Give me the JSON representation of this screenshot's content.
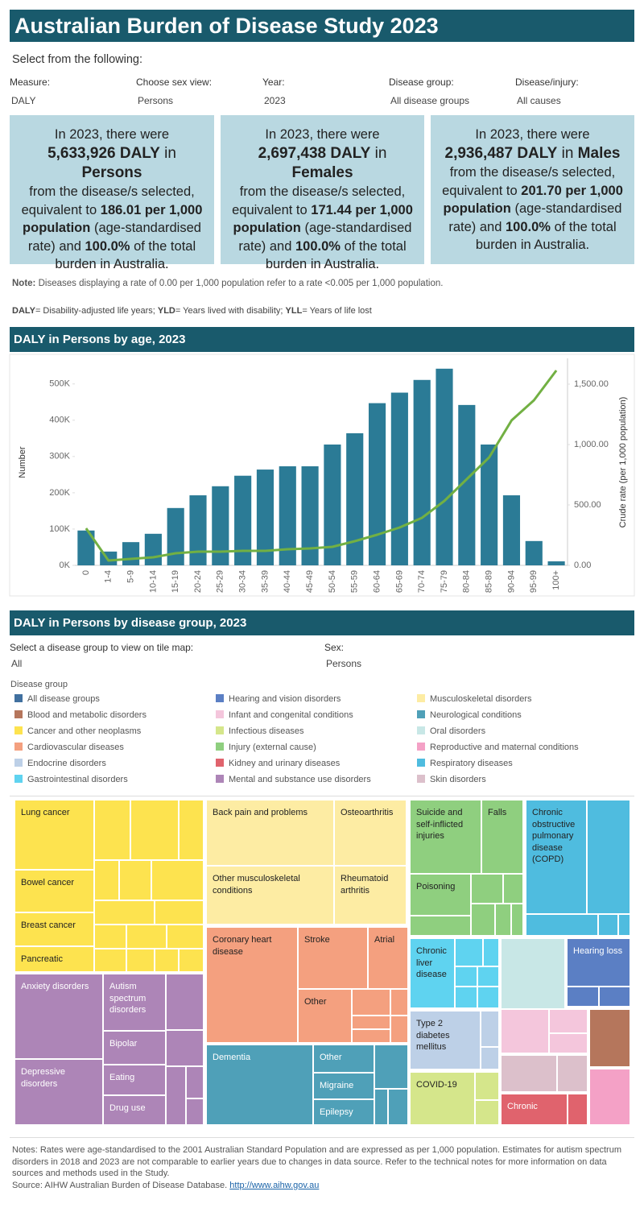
{
  "header": {
    "title": "Australian Burden of Disease Study 2023"
  },
  "prompt": "Select from the following:",
  "filters": [
    {
      "label": "Measure:",
      "value": "DALY"
    },
    {
      "label": "Choose sex view:",
      "value": "Persons"
    },
    {
      "label": "Year:",
      "value": "2023"
    },
    {
      "label": "Disease group:",
      "value": "All disease groups"
    },
    {
      "label": "Disease/injury:",
      "value": "All causes"
    }
  ],
  "cards": [
    {
      "intro": "In 2023, there were",
      "count": "5,633,926 DALY",
      "connector": "in",
      "sex": "Persons",
      "text1": "from the disease/s selected, equivalent to",
      "rate": "186.01 per 1,000 population",
      "text2": "(age-standardised rate) and",
      "share": "100.0%",
      "text3": "of the total burden in Australia."
    },
    {
      "intro": "In 2023, there were",
      "count": "2,697,438 DALY",
      "connector": "in",
      "sex": "Females",
      "text1": "from the disease/s selected, equivalent to",
      "rate": "171.44 per 1,000 population",
      "text2": "(age-standardised rate) and",
      "share": "100.0%",
      "text3": "of the total burden in Australia."
    },
    {
      "intro": "In 2023, there were",
      "count": "2,936,487 DALY",
      "connector": "in",
      "sex": "Males",
      "text1": "from the disease/s selected, equivalent to",
      "rate": "201.70 per 1,000 population",
      "text2": "(age-standardised rate) and",
      "share": "100.0%",
      "text3": "of the total burden in Australia."
    }
  ],
  "note": {
    "label": "Note:",
    "text": "Diseases displaying a rate of 0.00 per 1,000 population refer to a rate <0.005 per 1,000 population."
  },
  "definitions": [
    {
      "term": "DALY",
      "text": "= Disability-adjusted life years;"
    },
    {
      "term": "YLD",
      "text": "= Years lived with disability;"
    },
    {
      "term": "YLL",
      "text": "= Years of life lost"
    }
  ],
  "age_section": {
    "title": "DALY in Persons by age, 2023"
  },
  "chart_data": {
    "type": "bar",
    "categories": [
      "0",
      "1-4",
      "5-9",
      "10-14",
      "15-19",
      "20-24",
      "25-29",
      "30-34",
      "35-39",
      "40-44",
      "45-49",
      "50-54",
      "55-59",
      "60-64",
      "65-69",
      "70-74",
      "75-79",
      "80-84",
      "85-89",
      "90-94",
      "95-99",
      "100+"
    ],
    "series": [
      {
        "type": "bar",
        "color": "#2b7b96",
        "values": [
          96000,
          38000,
          64000,
          87000,
          158000,
          193000,
          218000,
          247000,
          264000,
          273000,
          273000,
          333000,
          364000,
          447000,
          476000,
          511000,
          542000,
          442000,
          333000,
          193000,
          67000,
          11000
        ]
      },
      {
        "type": "line",
        "axis": "y2",
        "color": "#72b043",
        "values": [
          307,
          40,
          53,
          67,
          100,
          113,
          113,
          120,
          120,
          133,
          140,
          153,
          200,
          253,
          313,
          393,
          533,
          713,
          893,
          1200,
          1367,
          1613
        ]
      }
    ],
    "y_label": "Number",
    "y2_label": "Crude rate (per 1,000 population)",
    "ylim": [
      0,
      566000
    ],
    "yticks": [
      {
        "value": 0,
        "label": "0K"
      },
      {
        "value": 100000,
        "label": "100K"
      },
      {
        "value": 200000,
        "label": "200K"
      },
      {
        "value": 300000,
        "label": "300K"
      },
      {
        "value": 400000,
        "label": "400K"
      },
      {
        "value": 500000,
        "label": "500K"
      }
    ],
    "y2lim": [
      0,
      1700
    ],
    "y2ticks": [
      {
        "value": 0,
        "label": "0.00"
      },
      {
        "value": 500,
        "label": "500.00"
      },
      {
        "value": 1000,
        "label": "1,000.00"
      },
      {
        "value": 1500,
        "label": "1,500.00"
      }
    ]
  },
  "group_section": {
    "title": "DALY in Persons by disease group, 2023",
    "selectors": [
      {
        "label": "Select a disease group to view on tile map:",
        "value": "All"
      },
      {
        "label": "Sex:",
        "value": "Persons"
      }
    ]
  },
  "legend": {
    "title": "Disease group",
    "items": [
      {
        "name": "All disease groups",
        "color": "#41709f"
      },
      {
        "name": "Blood and metabolic disorders",
        "color": "#b5765c"
      },
      {
        "name": "Cancer and other neoplasms",
        "color": "#fde34f"
      },
      {
        "name": "Cardiovascular diseases",
        "color": "#f4a07f"
      },
      {
        "name": "Endocrine disorders",
        "color": "#bdd0e7"
      },
      {
        "name": "Gastrointestinal disorders",
        "color": "#5fd3f0"
      },
      {
        "name": "Hearing and vision disorders",
        "color": "#5b7fc4"
      },
      {
        "name": "Infant and congenital conditions",
        "color": "#f4c6dc"
      },
      {
        "name": "Infectious diseases",
        "color": "#d5e68b"
      },
      {
        "name": "Injury (external cause)",
        "color": "#8fcf7f"
      },
      {
        "name": "Kidney and urinary diseases",
        "color": "#e0636d"
      },
      {
        "name": "Mental and substance use disorders",
        "color": "#ad85b7"
      },
      {
        "name": "Musculoskeletal disorders",
        "color": "#fdeca3"
      },
      {
        "name": "Neurological conditions",
        "color": "#4fa0b8"
      },
      {
        "name": "Oral disorders",
        "color": "#c8e7e6"
      },
      {
        "name": "Reproductive and maternal conditions",
        "color": "#f4a1c6"
      },
      {
        "name": "Respiratory diseases",
        "color": "#4fbcdf"
      },
      {
        "name": "Skin disorders",
        "color": "#dcc0cb"
      }
    ]
  },
  "treemap": {
    "tiles": [
      "Lung cancer",
      "Bowel cancer",
      "Breast cancer",
      "Pancreatic",
      "Anxiety disorders",
      "Depressive disorders",
      "Autism spectrum disorders",
      "Bipolar",
      "Eating",
      "Drug use",
      "Back pain and problems",
      "Other musculoskeletal conditions",
      "Osteoarthritis",
      "Rheumatoid arthritis",
      "Coronary heart disease",
      "Stroke",
      "Atrial",
      "Other",
      "Dementia",
      "Other",
      "Migraine",
      "Epilepsy",
      "Suicide and self-inflicted injuries",
      "Falls",
      "Poisoning",
      "Chronic obstructive pulmonary disease (COPD)",
      "Chronic liver disease",
      "Hearing loss",
      "Type 2 diabetes mellitus",
      "COVID-19",
      "Chronic"
    ]
  },
  "footer": {
    "notes": "Notes: Rates were age-standardised to the 2001 Australian Standard Population and are expressed as per 1,000 population. Estimates for autism spectrum disorders in 2018 and 2023 are not comparable to earlier years due to changes in data source. Refer to the technical notes for more information on data sources and methods used in the Study.",
    "source": "Source: AIHW Australian Burden of Disease Database.",
    "link": "http://www.aihw.gov.au"
  }
}
